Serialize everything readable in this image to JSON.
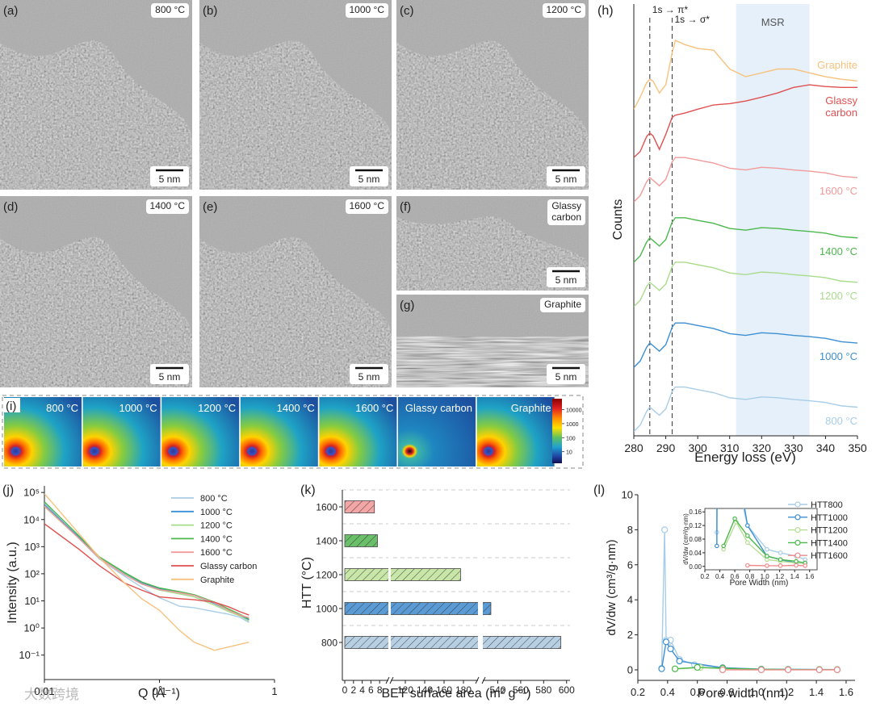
{
  "images": [
    {
      "label": "(a)",
      "tag": "800 °C",
      "scale_bar": "5 nm"
    },
    {
      "label": "(b)",
      "tag": "1000 °C",
      "scale_bar": "5 nm"
    },
    {
      "label": "(c)",
      "tag": "1200 °C",
      "scale_bar": "5 nm"
    },
    {
      "label": "(d)",
      "tag": "1400 °C",
      "scale_bar": "5 nm"
    },
    {
      "label": "(e)",
      "tag": "1600 °C",
      "scale_bar": "5 nm"
    },
    {
      "label": "(f)",
      "tag": "Glassy\ncarbon",
      "scale_bar": "5 nm"
    },
    {
      "label": "(g)",
      "tag": "Graphite",
      "scale_bar": "5 nm"
    }
  ],
  "saxs": {
    "label": "(i)",
    "titles": [
      "800 °C",
      "1000 °C",
      "1200 °C",
      "1400 °C",
      "1600 °C",
      "Glassy carbon",
      "Graphite"
    ],
    "colorbar": {
      "log_scale": true,
      "clim": [
        1.5,
        60000
      ],
      "ticks": [
        10000,
        1000,
        100,
        10
      ]
    }
  },
  "chart_data": [
    {
      "type": "line",
      "panel_label": "(h)",
      "x_label": "Energy loss (eV)",
      "y_label": "Counts",
      "x": [
        280,
        282,
        284,
        285,
        286,
        288,
        290,
        292,
        293,
        296,
        300,
        305,
        310,
        315,
        320,
        325,
        330,
        335,
        340,
        345,
        350
      ],
      "xlim": [
        280,
        350
      ],
      "xticks": [
        280,
        290,
        300,
        310,
        320,
        330,
        340,
        350
      ],
      "ylim": [
        0,
        101
      ],
      "annotations": [
        {
          "text": "1s → π*",
          "x": 285
        },
        {
          "text": "1s → σ*",
          "x": 292
        }
      ],
      "shaded_region": {
        "text": "MSR",
        "xlim": [
          312,
          335
        ],
        "color": "#e6f0fb"
      },
      "series": [
        {
          "name": "Graphite",
          "color": "#f7c27e",
          "values": [
            76.4,
            79.2,
            82.6,
            83.4,
            83.0,
            80.2,
            82.1,
            89.6,
            92.5,
            91.5,
            90.6,
            90.2,
            85.8,
            84.0,
            84.9,
            85.8,
            85.8,
            84.9,
            84.0,
            83.4,
            83.0
          ]
        },
        {
          "name": "Glassy\ncarbon",
          "color": "#e05050",
          "values": [
            65.1,
            66.5,
            70.0,
            70.8,
            70.2,
            67.0,
            70.5,
            74.5,
            75.0,
            75.5,
            76.4,
            77.4,
            77.7,
            78.3,
            79.2,
            80.2,
            81.5,
            82.1,
            81.7,
            81.5,
            81.5
          ]
        },
        {
          "name": "1600 °C",
          "color": "#f29a9a",
          "values": [
            54.7,
            56.2,
            59.4,
            60.4,
            59.8,
            58.5,
            60.0,
            64.1,
            65.1,
            65.1,
            64.5,
            63.8,
            62.6,
            62.2,
            62.8,
            62.6,
            62.2,
            61.9,
            61.5,
            60.7,
            60.4
          ]
        },
        {
          "name": "1400 °C",
          "color": "#4cb84c",
          "values": [
            40.6,
            42.1,
            45.3,
            46.3,
            45.7,
            44.4,
            45.9,
            50.0,
            51.0,
            51.0,
            50.4,
            49.7,
            48.5,
            48.1,
            48.7,
            48.5,
            48.1,
            47.8,
            47.4,
            46.6,
            46.3
          ]
        },
        {
          "name": "1200 °C",
          "color": "#a8dc8c",
          "values": [
            30.2,
            31.7,
            34.9,
            35.9,
            35.3,
            34.0,
            35.5,
            39.6,
            40.6,
            40.6,
            40.0,
            39.3,
            38.1,
            37.7,
            38.3,
            38.1,
            37.7,
            37.4,
            37.0,
            36.2,
            35.9
          ]
        },
        {
          "name": "1000 °C",
          "color": "#3c8fd2",
          "values": [
            16.0,
            17.5,
            20.7,
            21.7,
            21.1,
            19.8,
            21.3,
            25.4,
            26.4,
            26.4,
            25.8,
            25.1,
            23.9,
            23.5,
            24.1,
            23.9,
            23.5,
            23.2,
            22.8,
            22.0,
            21.7
          ]
        },
        {
          "name": "800 °C",
          "color": "#a8cde8",
          "values": [
            1.0,
            2.5,
            5.7,
            6.7,
            6.1,
            4.8,
            6.3,
            10.4,
            11.4,
            11.4,
            10.8,
            10.1,
            8.9,
            8.5,
            9.1,
            8.9,
            8.5,
            8.2,
            7.8,
            7.0,
            6.7
          ]
        }
      ]
    },
    {
      "type": "line",
      "panel_label": "(j)",
      "x_label": "Q (Å⁻¹)",
      "y_label": "Intensity (a.u.)",
      "log_x": true,
      "log_y": true,
      "x": [
        0.01,
        0.02,
        0.03,
        0.05,
        0.07,
        0.1,
        0.15,
        0.2,
        0.3,
        0.4,
        0.5,
        0.6
      ],
      "xlim": [
        0.01,
        1
      ],
      "xticks": [
        0.01,
        0.1,
        1
      ],
      "ylim": [
        0.0125,
        175000
      ],
      "yticks": [
        {
          "value": 0.1,
          "label": "10⁻¹"
        },
        {
          "value": 1,
          "label": "10⁰"
        },
        {
          "value": 10,
          "label": "10¹"
        },
        {
          "value": 100,
          "label": "10²"
        },
        {
          "value": 1000,
          "label": "10³"
        },
        {
          "value": 10000,
          "label": "10⁴"
        },
        {
          "value": 100000,
          "label": "10⁵"
        }
      ],
      "series": [
        {
          "name": "800 °C",
          "color": "#a8cde8",
          "values": [
            40000,
            2000,
            350,
            80,
            32,
            13,
            6.3,
            5.6,
            4,
            3.2,
            2.5,
            1.6
          ]
        },
        {
          "name": "1000 °C",
          "color": "#3c8fd2",
          "values": [
            35000,
            2200,
            400,
            100,
            45,
            28,
            20,
            16,
            8,
            4.5,
            3,
            2
          ]
        },
        {
          "name": "1200 °C",
          "color": "#a8dc8c",
          "values": [
            30000,
            2000,
            380,
            95,
            42,
            25,
            18,
            14,
            7,
            4,
            2.8,
            1.8
          ]
        },
        {
          "name": "1400 °C",
          "color": "#4cb84c",
          "values": [
            45000,
            2500,
            420,
            110,
            50,
            30,
            22,
            17,
            9,
            5,
            3.2,
            2.2
          ]
        },
        {
          "name": "1600 °C",
          "color": "#f29a9a",
          "values": [
            32000,
            2000,
            380,
            90,
            42,
            26,
            20,
            16,
            8.5,
            4.5,
            3,
            2.4
          ]
        },
        {
          "name": "Glassy carbon",
          "color": "#e05050",
          "values": [
            7000,
            800,
            200,
            45,
            25,
            14,
            12,
            11,
            9,
            6,
            4,
            3
          ]
        },
        {
          "name": "Graphite",
          "color": "#f7c27e",
          "values": [
            90000,
            3000,
            400,
            45,
            12,
            4.5,
            0.8,
            0.3,
            0.15,
            0.2,
            0.25,
            0.3
          ]
        }
      ]
    },
    {
      "type": "bar",
      "orientation": "horizontal",
      "hatch": true,
      "panel_label": "(k)",
      "x_label": "BET surface area (m² g⁻¹)",
      "y_label": "HTT (°C)",
      "categories": [
        "1600",
        "1400",
        "1200",
        "1000",
        "800"
      ],
      "values": [
        6.8,
        7.5,
        177,
        534,
        595
      ],
      "colors": [
        "#f4a6a6",
        "#6abf69",
        "#c8e6a8",
        "#5b9bd5",
        "#b7cfe3"
      ],
      "xlim_segments": [
        [
          0,
          10
        ],
        [
          105,
          195
        ],
        [
          527,
          603
        ]
      ],
      "xticks": [
        0,
        2,
        4,
        6,
        8,
        120,
        140,
        160,
        180,
        540,
        560,
        580,
        600
      ]
    },
    {
      "type": "line",
      "markers": true,
      "panel_label": "(l)",
      "x_label": "Pore width (nm)",
      "y_label": "dV/dw (cm³/g·nm)",
      "xlim": [
        0.2,
        1.66
      ],
      "xticks": [
        0.2,
        0.4,
        0.6,
        0.8,
        {
          "value": 1,
          "label": "1.0"
        },
        1.2,
        1.4,
        1.6
      ],
      "ylim": [
        -0.6,
        10
      ],
      "yticks": [
        0,
        2,
        4,
        6,
        8,
        10
      ],
      "series": [
        {
          "name": "HTT800",
          "color": "#a8cde8",
          "x": [
            0.36,
            0.38,
            0.39,
            0.41,
            0.42,
            0.48,
            0.58,
            0.77,
            1.03,
            1.21,
            1.42,
            1.54
          ],
          "values": [
            0.1,
            8,
            1.7,
            1.6,
            1.7,
            0.6,
            0.3,
            0.12,
            0.05,
            0.04,
            0.03,
            0.02
          ]
        },
        {
          "name": "HTT1000",
          "color": "#3c8fd2",
          "x": [
            0.36,
            0.39,
            0.42,
            0.48,
            0.77,
            1.03,
            1.21,
            1.42,
            1.54
          ],
          "values": [
            0.06,
            1.6,
            1.2,
            0.5,
            0.12,
            0.03,
            0.02,
            0.01,
            0.01
          ]
        },
        {
          "name": "HTT1200",
          "color": "#b5de93",
          "x": [
            0.45,
            0.62,
            0.77,
            1.03,
            1.21,
            1.42,
            1.54
          ],
          "values": [
            0.05,
            0.13,
            0.07,
            0.02,
            0.015,
            0.01,
            0.01
          ]
        },
        {
          "name": "HTT1400",
          "color": "#4cb84c",
          "x": [
            0.45,
            0.6,
            0.77,
            1.03,
            1.21,
            1.42,
            1.54
          ],
          "values": [
            0.06,
            0.14,
            0.09,
            0.03,
            0.02,
            0.015,
            0.01
          ]
        },
        {
          "name": "HTT1600",
          "color": "#f08a8a",
          "x": [
            0.77,
            1.03,
            1.21,
            1.42,
            1.54
          ],
          "values": [
            0.003,
            0.002,
            0.002,
            0.003,
            0.002
          ]
        }
      ],
      "inset": {
        "x_label": "Pore Width (nm)",
        "y_label": "dV/dw (cm³/g·nm)",
        "xlim": [
          0.2,
          1.7
        ],
        "xticks": [
          0.2,
          0.4,
          0.6,
          0.8,
          {
            "value": 1,
            "label": "1.0"
          },
          1.2,
          1.4,
          1.6
        ],
        "ylim": [
          -0.01,
          0.17
        ],
        "yticks": [
          {
            "value": 0,
            "label": "0.00"
          },
          0.04,
          0.08,
          0.12,
          0.16
        ]
      }
    }
  ],
  "watermark": "大数跨境"
}
